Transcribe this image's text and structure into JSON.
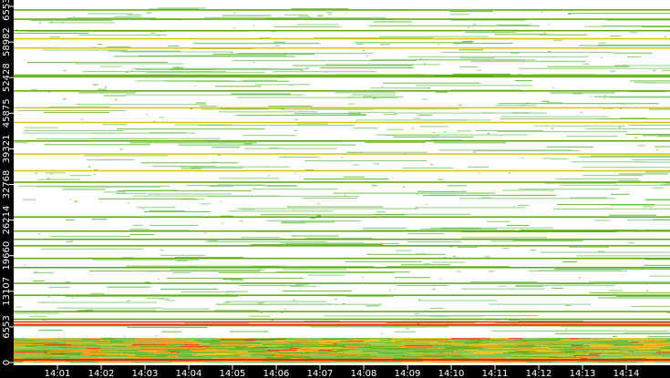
{
  "chart_data": {
    "type": "heatmap",
    "title": "",
    "xlabel": "",
    "ylabel": "",
    "x_tick_labels": [
      "14:01",
      "14:02",
      "14:03",
      "14:04",
      "14:05",
      "14:06",
      "14:07",
      "14:08",
      "14:09",
      "14:10",
      "14:11",
      "14:12",
      "14:13",
      "14:14"
    ],
    "x_range": [
      "14:00",
      "14:15"
    ],
    "y_tick_values": [
      0,
      6553,
      13107,
      19660,
      26214,
      32768,
      39321,
      45875,
      52428,
      58982,
      65536
    ],
    "y_tick_labels": [
      "0",
      "6553",
      "13107",
      "19660",
      "26214",
      "32768",
      "39321",
      "45875",
      "52428",
      "58982",
      "65536"
    ],
    "ylim": [
      0,
      66500
    ],
    "dense_band": [
      0,
      4500
    ],
    "persistent_rows": [
      65000,
      63300,
      61200,
      59700,
      58000,
      53000,
      52700,
      50100,
      47000,
      44300,
      40900,
      38500,
      35400,
      33300,
      26900,
      24300,
      22800,
      21600,
      19300,
      17600,
      14700,
      12500,
      9500,
      8100,
      7600,
      7100,
      6900
    ],
    "colormap": [
      "#8fd080",
      "#6cc040",
      "#5aa800",
      "#e0c000",
      "#ff9000",
      "#ff2000"
    ],
    "background": "#ffffff",
    "frame": "#000000"
  }
}
